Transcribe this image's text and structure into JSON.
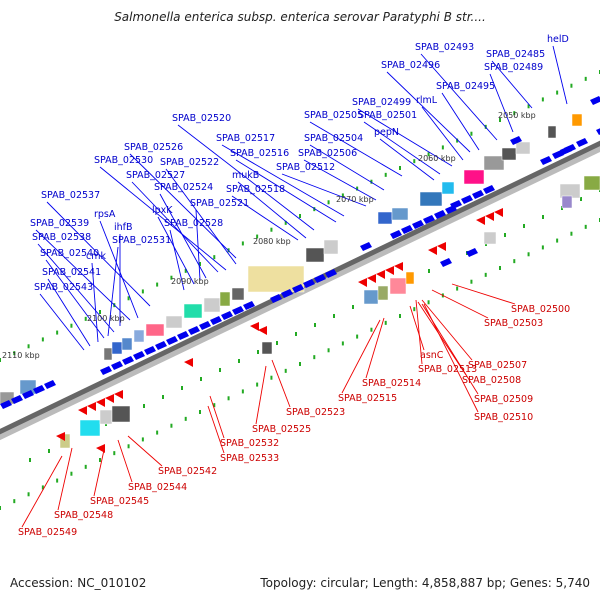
{
  "title": "Salmonella enterica subsp. enterica serovar Paratyphi B str....",
  "footer": {
    "accession": "Accession: NC_010102",
    "summary": "Topology: circular; Length: 4,858,887 bp; Genes: 5,740"
  },
  "colors": {
    "forward_strand": "#0000ee",
    "reverse_strand": "#ee0000",
    "forward_label": "#0000cc",
    "reverse_label": "#cc0000",
    "backbone": "#666666",
    "gc_marks": "#22aa22"
  },
  "scale_labels": [
    "2050 kbp",
    "2060 kbp",
    "2070 kbp",
    "2080 kbp",
    "2090 kbp",
    "2100 kbp",
    "2110 kbp"
  ],
  "forward_genes": [
    "helD",
    "SPAB_02485",
    "SPAB_02489",
    "SPAB_02493",
    "SPAB_02495",
    "SPAB_02496",
    "rlmL",
    "SPAB_02499",
    "SPAB_02501",
    "SPAB_02505",
    "pepN",
    "SPAB_02504",
    "SPAB_02506",
    "SPAB_02512",
    "SPAB_02517",
    "SPAB_02516",
    "SPAB_02520",
    "mukB",
    "SPAB_02518",
    "SPAB_02526",
    "SPAB_02522",
    "SPAB_02530",
    "SPAB_02527",
    "SPAB_02524",
    "SPAB_02521",
    "lpxK",
    "SPAB_02528",
    "SPAB_02537",
    "rpsA",
    "SPAB_02539",
    "ihfB",
    "SPAB_02538",
    "SPAB_02531",
    "SPAB_02540",
    "cmk",
    "SPAB_02541",
    "SPAB_02543"
  ],
  "reverse_genes": [
    "SPAB_02500",
    "SPAB_02503",
    "asnC",
    "SPAB_02507",
    "SPAB_02513",
    "SPAB_02508",
    "SPAB_02514",
    "SPAB_02509",
    "SPAB_02515",
    "SPAB_02510",
    "SPAB_02523",
    "SPAB_02525",
    "SPAB_02532",
    "SPAB_02533",
    "SPAB_02542",
    "SPAB_02544",
    "SPAB_02545",
    "SPAB_02548",
    "SPAB_02549"
  ]
}
